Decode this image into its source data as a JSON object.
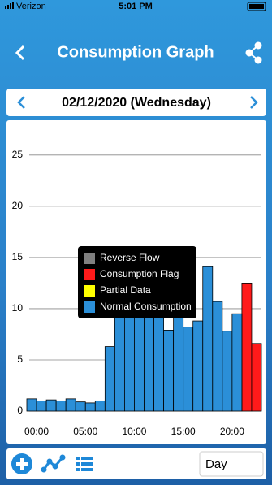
{
  "status_bar": {
    "carrier": "Verizon",
    "time": "5:01 PM"
  },
  "header": {
    "title": "Consumption Graph"
  },
  "date_bar": {
    "date": "02/12/2020 (Wednesday)"
  },
  "chart_data": {
    "type": "bar",
    "categories": [
      "00:00",
      null,
      null,
      null,
      null,
      "05:00",
      null,
      null,
      null,
      null,
      "10:00",
      null,
      null,
      null,
      null,
      "15:00",
      null,
      null,
      null,
      null,
      "20:00",
      null,
      null,
      null
    ],
    "series": [
      {
        "name": "Reverse Flow",
        "color": "#808080",
        "values": [
          null,
          null,
          null,
          null,
          null,
          null,
          null,
          null,
          null,
          null,
          null,
          null,
          null,
          null,
          null,
          null,
          null,
          null,
          null,
          null,
          null,
          null,
          null,
          null
        ]
      },
      {
        "name": "Consumption Flag",
        "color": "#ff1a1a",
        "values": [
          null,
          null,
          null,
          null,
          null,
          null,
          null,
          null,
          null,
          null,
          null,
          null,
          null,
          null,
          null,
          null,
          null,
          null,
          null,
          null,
          null,
          null,
          12.5,
          6.6
        ]
      },
      {
        "name": "Partial Data",
        "color": "#ffff00",
        "values": [
          null,
          null,
          null,
          null,
          null,
          null,
          null,
          null,
          null,
          null,
          null,
          null,
          null,
          null,
          null,
          null,
          null,
          null,
          null,
          null,
          null,
          null,
          null,
          null
        ]
      },
      {
        "name": "Normal Consumption",
        "color": "#2b8fd8",
        "values": [
          1.2,
          1.0,
          1.1,
          1.0,
          1.2,
          0.9,
          0.8,
          1.0,
          6.3,
          10,
          10,
          10,
          9.5,
          9.5,
          7.9,
          9.8,
          8.2,
          8.8,
          14.1,
          10.7,
          7.8,
          9.5,
          null,
          null
        ]
      }
    ],
    "ylim": [
      0,
      28
    ],
    "yticks": [
      0,
      5,
      10,
      15,
      20,
      25
    ],
    "grid": true
  },
  "toolbar": {
    "period": "Day"
  }
}
